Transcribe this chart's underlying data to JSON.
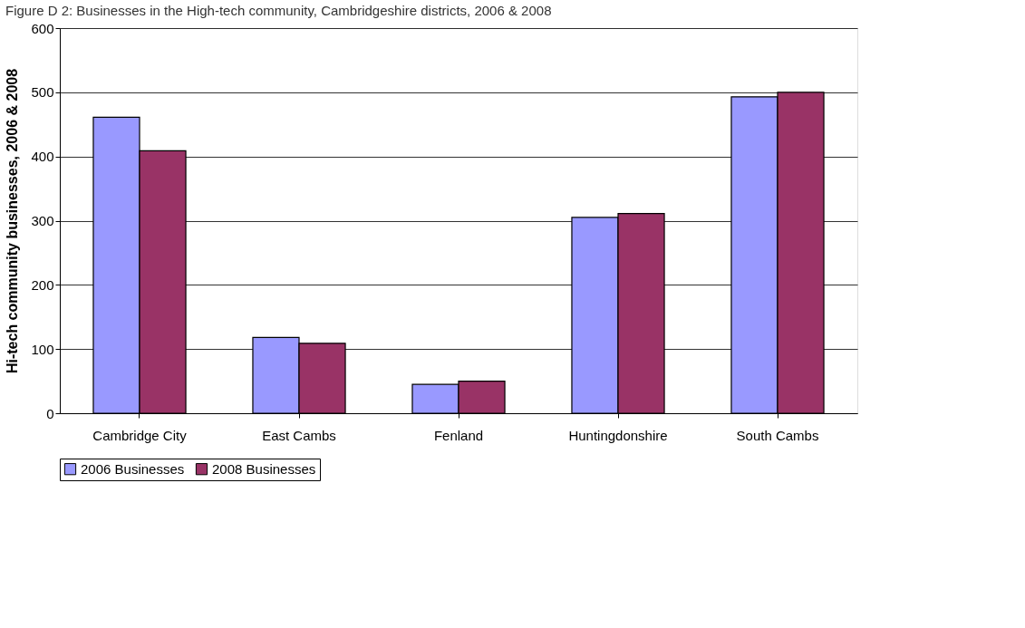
{
  "chart_data": {
    "type": "bar",
    "title": "Figure D 2: Businesses in the High-tech community, Cambridgeshire districts, 2006 & 2008",
    "ylabel": "Hi-tech community businesses, 2006 & 2008",
    "categories": [
      "Cambridge City",
      "East Cambs",
      "Fenland",
      "Huntingdonshire",
      "South Cambs"
    ],
    "series": [
      {
        "name": "2006 Businesses",
        "color": "#9999ff",
        "values": [
          461,
          118,
          45,
          305,
          493
        ]
      },
      {
        "name": "2008 Businesses",
        "color": "#993366",
        "values": [
          409,
          109,
          50,
          311,
          500
        ]
      }
    ],
    "ylim": [
      0,
      600
    ],
    "yticks": [
      0,
      100,
      200,
      300,
      400,
      500,
      600
    ],
    "grid": "y",
    "legend": "bottom"
  }
}
